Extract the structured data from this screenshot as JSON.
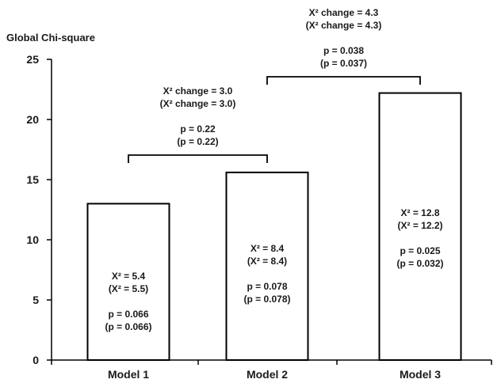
{
  "chart_data": {
    "type": "bar",
    "ylabel": "Global Chi-square",
    "ylim": [
      0,
      25
    ],
    "yticks": [
      "0",
      "5",
      "10",
      "15",
      "20",
      "25"
    ],
    "categories": [
      "Model 1",
      "Model 2",
      "Model 3"
    ],
    "values": [
      13.0,
      15.6,
      22.2
    ],
    "bar_color": "#ffffff",
    "bar_stroke": "#000000",
    "bar_labels": [
      [
        "X² = 5.4",
        "(X² = 5.5)",
        "",
        "p = 0.066",
        "(p = 0.066)"
      ],
      [
        "X² = 8.4",
        "(X² = 8.4)",
        "",
        "p = 0.078",
        "(p = 0.078)"
      ],
      [
        "X² = 12.8",
        "(X² = 12.2)",
        "",
        "p = 0.025",
        "(p = 0.032)"
      ]
    ],
    "comparisons": [
      {
        "between": [
          "Model 1",
          "Model 2"
        ],
        "labels": [
          "X² change = 3.0",
          "(X² change = 3.0)",
          "",
          "p = 0.22",
          "(p = 0.22)"
        ]
      },
      {
        "between": [
          "Model 2",
          "Model 3"
        ],
        "labels": [
          "X² change = 4.3",
          "(X² change = 4.3)",
          "",
          "p = 0.038",
          "(p = 0.037)"
        ]
      }
    ],
    "grid": false,
    "legend": "none"
  }
}
